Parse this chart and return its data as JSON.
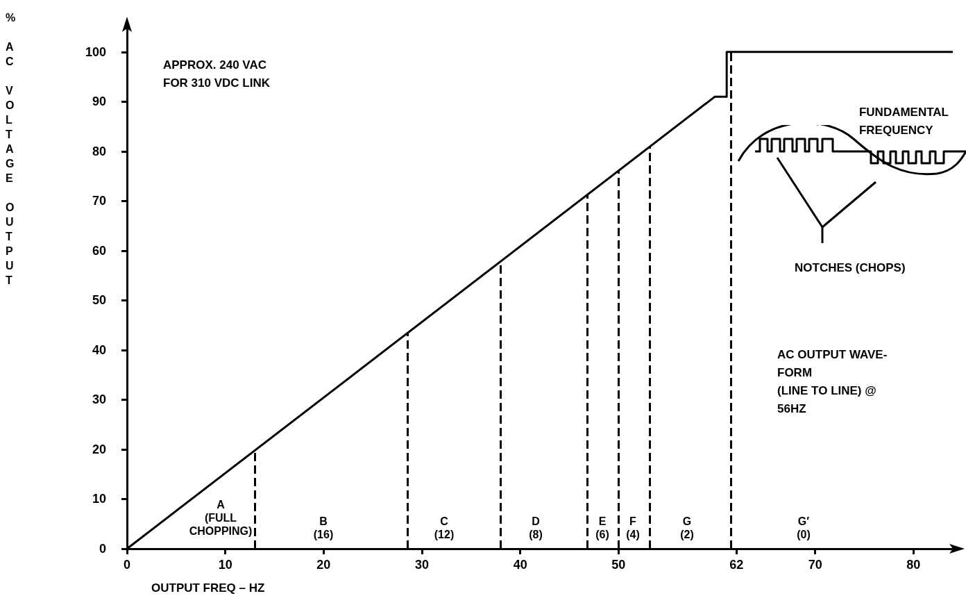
{
  "chart_data": {
    "type": "line",
    "xlabel": "OUTPUT FREQ – HZ",
    "ylabel": "% AC VOLTAGE OUTPUT",
    "xlim": [
      0,
      84
    ],
    "xticks": [
      0,
      10,
      20,
      30,
      40,
      50,
      62,
      70,
      80
    ],
    "ylim": [
      0,
      105
    ],
    "yticks": [
      0,
      10,
      20,
      30,
      40,
      50,
      60,
      70,
      80,
      90,
      100
    ],
    "series": [
      {
        "color": "#000000",
        "x": [
          0,
          59.8,
          61,
          61,
          84
        ],
        "values": [
          0,
          91,
          91,
          100,
          100
        ]
      }
    ],
    "marker": "none",
    "line_style": "solid",
    "grid": false,
    "ref_lines": [
      {
        "axis": "x",
        "value": 13,
        "line_style": "dashed"
      },
      {
        "axis": "x",
        "value": 28.5,
        "line_style": "dashed"
      },
      {
        "axis": "x",
        "value": 38,
        "line_style": "dashed"
      },
      {
        "axis": "x",
        "value": 46.8,
        "line_style": "dashed"
      },
      {
        "axis": "x",
        "value": 50,
        "line_style": "dashed"
      },
      {
        "axis": "x",
        "value": 53.2,
        "line_style": "dashed"
      },
      {
        "axis": "x",
        "value": 61.4,
        "line_style": "dashed"
      }
    ],
    "annotations": [
      "APPROX. 240 VAC\nFOR 310 VDC LINK",
      "FUNDAMENTAL\nFREQUENCY",
      "NOTCHES (CHOPS)",
      "AC OUTPUT WAVE-\nFORM\n(LINE TO LINE) @\n56HZ",
      "A\n(FULL\nCHOPPING)",
      "B\n(16)",
      "C\n(12)",
      "D\n(8)",
      "E\n(6)",
      "F\n(4)",
      "G\n(2)",
      "G′\n(0)"
    ]
  }
}
